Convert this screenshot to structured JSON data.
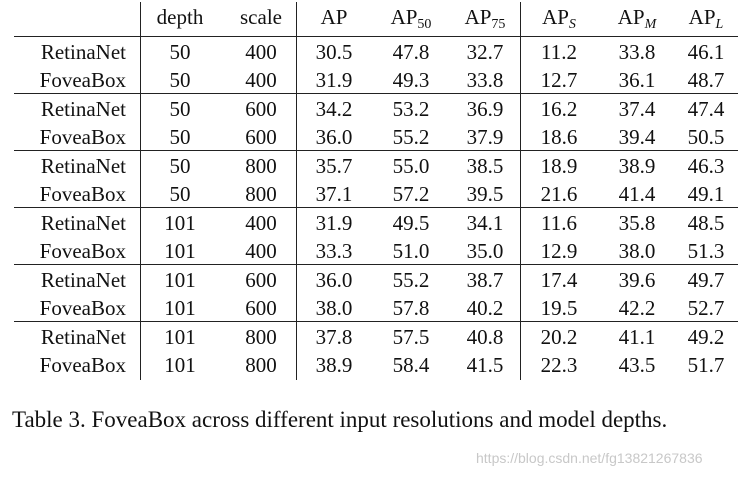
{
  "table": {
    "headers": [
      {
        "base": "",
        "sub": ""
      },
      {
        "base": "depth",
        "sub": ""
      },
      {
        "base": "scale",
        "sub": ""
      },
      {
        "base": "AP",
        "sub": ""
      },
      {
        "base": "AP",
        "sub": "50"
      },
      {
        "base": "AP",
        "sub": "75"
      },
      {
        "base": "AP",
        "sub": "S"
      },
      {
        "base": "AP",
        "sub": "M"
      },
      {
        "base": "AP",
        "sub": "L"
      }
    ],
    "groups": [
      [
        [
          "RetinaNet",
          "50",
          "400",
          "30.5",
          "47.8",
          "32.7",
          "11.2",
          "33.8",
          "46.1"
        ],
        [
          "FoveaBox",
          "50",
          "400",
          "31.9",
          "49.3",
          "33.8",
          "12.7",
          "36.1",
          "48.7"
        ]
      ],
      [
        [
          "RetinaNet",
          "50",
          "600",
          "34.2",
          "53.2",
          "36.9",
          "16.2",
          "37.4",
          "47.4"
        ],
        [
          "FoveaBox",
          "50",
          "600",
          "36.0",
          "55.2",
          "37.9",
          "18.6",
          "39.4",
          "50.5"
        ]
      ],
      [
        [
          "RetinaNet",
          "50",
          "800",
          "35.7",
          "55.0",
          "38.5",
          "18.9",
          "38.9",
          "46.3"
        ],
        [
          "FoveaBox",
          "50",
          "800",
          "37.1",
          "57.2",
          "39.5",
          "21.6",
          "41.4",
          "49.1"
        ]
      ],
      [
        [
          "RetinaNet",
          "101",
          "400",
          "31.9",
          "49.5",
          "34.1",
          "11.6",
          "35.8",
          "48.5"
        ],
        [
          "FoveaBox",
          "101",
          "400",
          "33.3",
          "51.0",
          "35.0",
          "12.9",
          "38.0",
          "51.3"
        ]
      ],
      [
        [
          "RetinaNet",
          "101",
          "600",
          "36.0",
          "55.2",
          "38.7",
          "17.4",
          "39.6",
          "49.7"
        ],
        [
          "FoveaBox",
          "101",
          "600",
          "38.0",
          "57.8",
          "40.2",
          "19.5",
          "42.2",
          "52.7"
        ]
      ],
      [
        [
          "RetinaNet",
          "101",
          "800",
          "37.8",
          "57.5",
          "40.8",
          "20.2",
          "41.1",
          "49.2"
        ],
        [
          "FoveaBox",
          "101",
          "800",
          "38.9",
          "58.4",
          "41.5",
          "22.3",
          "43.5",
          "51.7"
        ]
      ]
    ]
  },
  "caption": "Table 3. FoveaBox across different input resolutions and model depths.",
  "watermark": "https://blog.csdn.net/fg13821267836"
}
